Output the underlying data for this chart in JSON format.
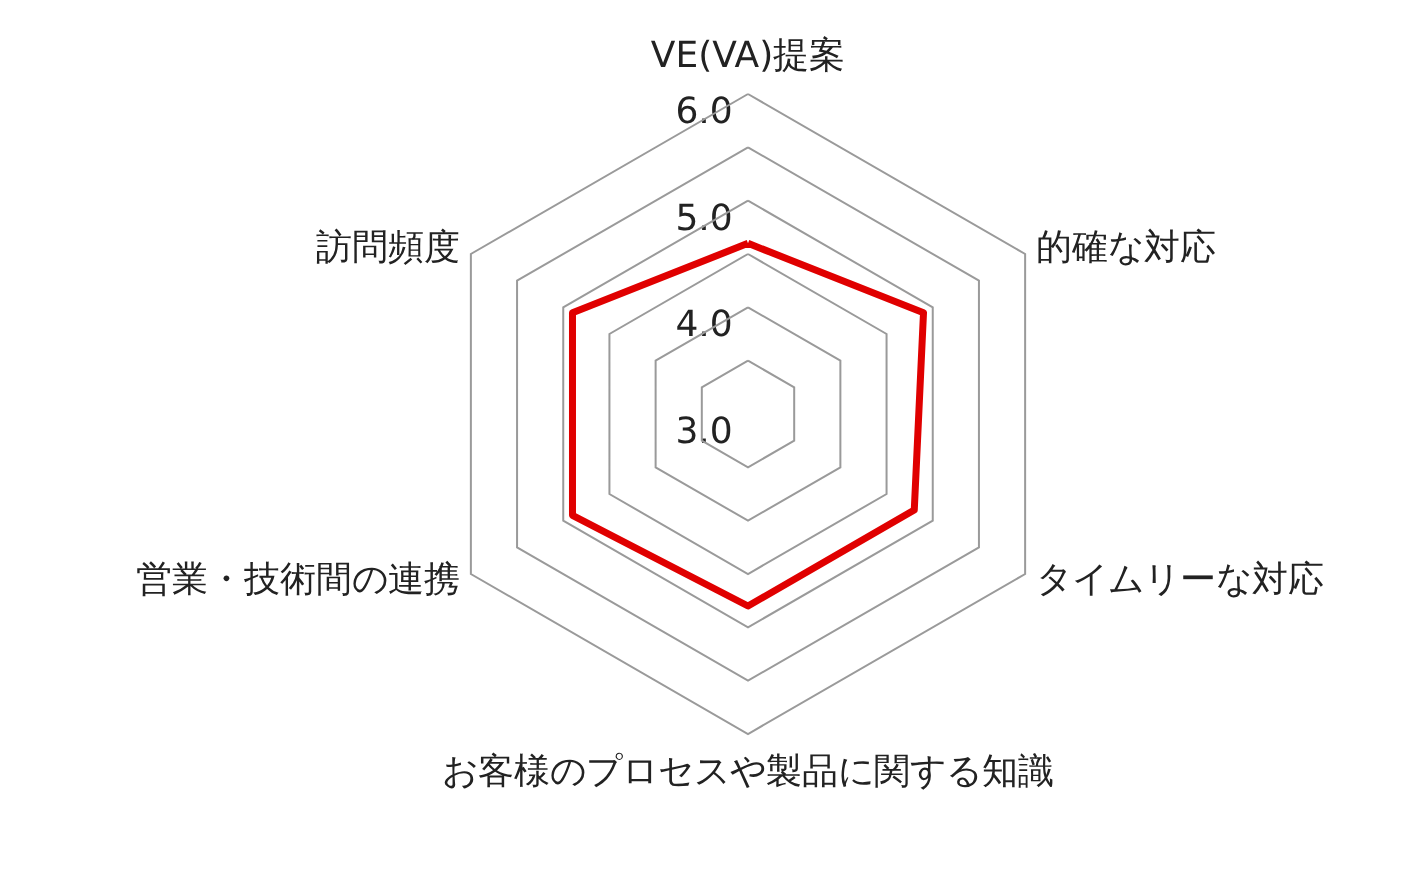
{
  "chart_data": {
    "type": "radar",
    "categories": [
      "VE(VA)提案",
      "的確な対応",
      "タイムリーな対応",
      "お客様のプロセスや製品に関する知識",
      "営業・技術間の連携",
      "訪問頻度"
    ],
    "series": [
      {
        "color": "#e00000",
        "values": [
          4.6,
          4.9,
          4.8,
          4.8,
          4.9,
          4.9
        ]
      }
    ],
    "ylim": [
      3,
      6
    ],
    "yticks": [
      {
        "value": 3,
        "label": "3.0"
      },
      {
        "value": 4,
        "label": "4.0"
      },
      {
        "value": 5,
        "label": "5.0"
      },
      {
        "value": 6,
        "label": "6.0"
      }
    ],
    "grid": true,
    "marker": "none",
    "line_style": "solid"
  }
}
